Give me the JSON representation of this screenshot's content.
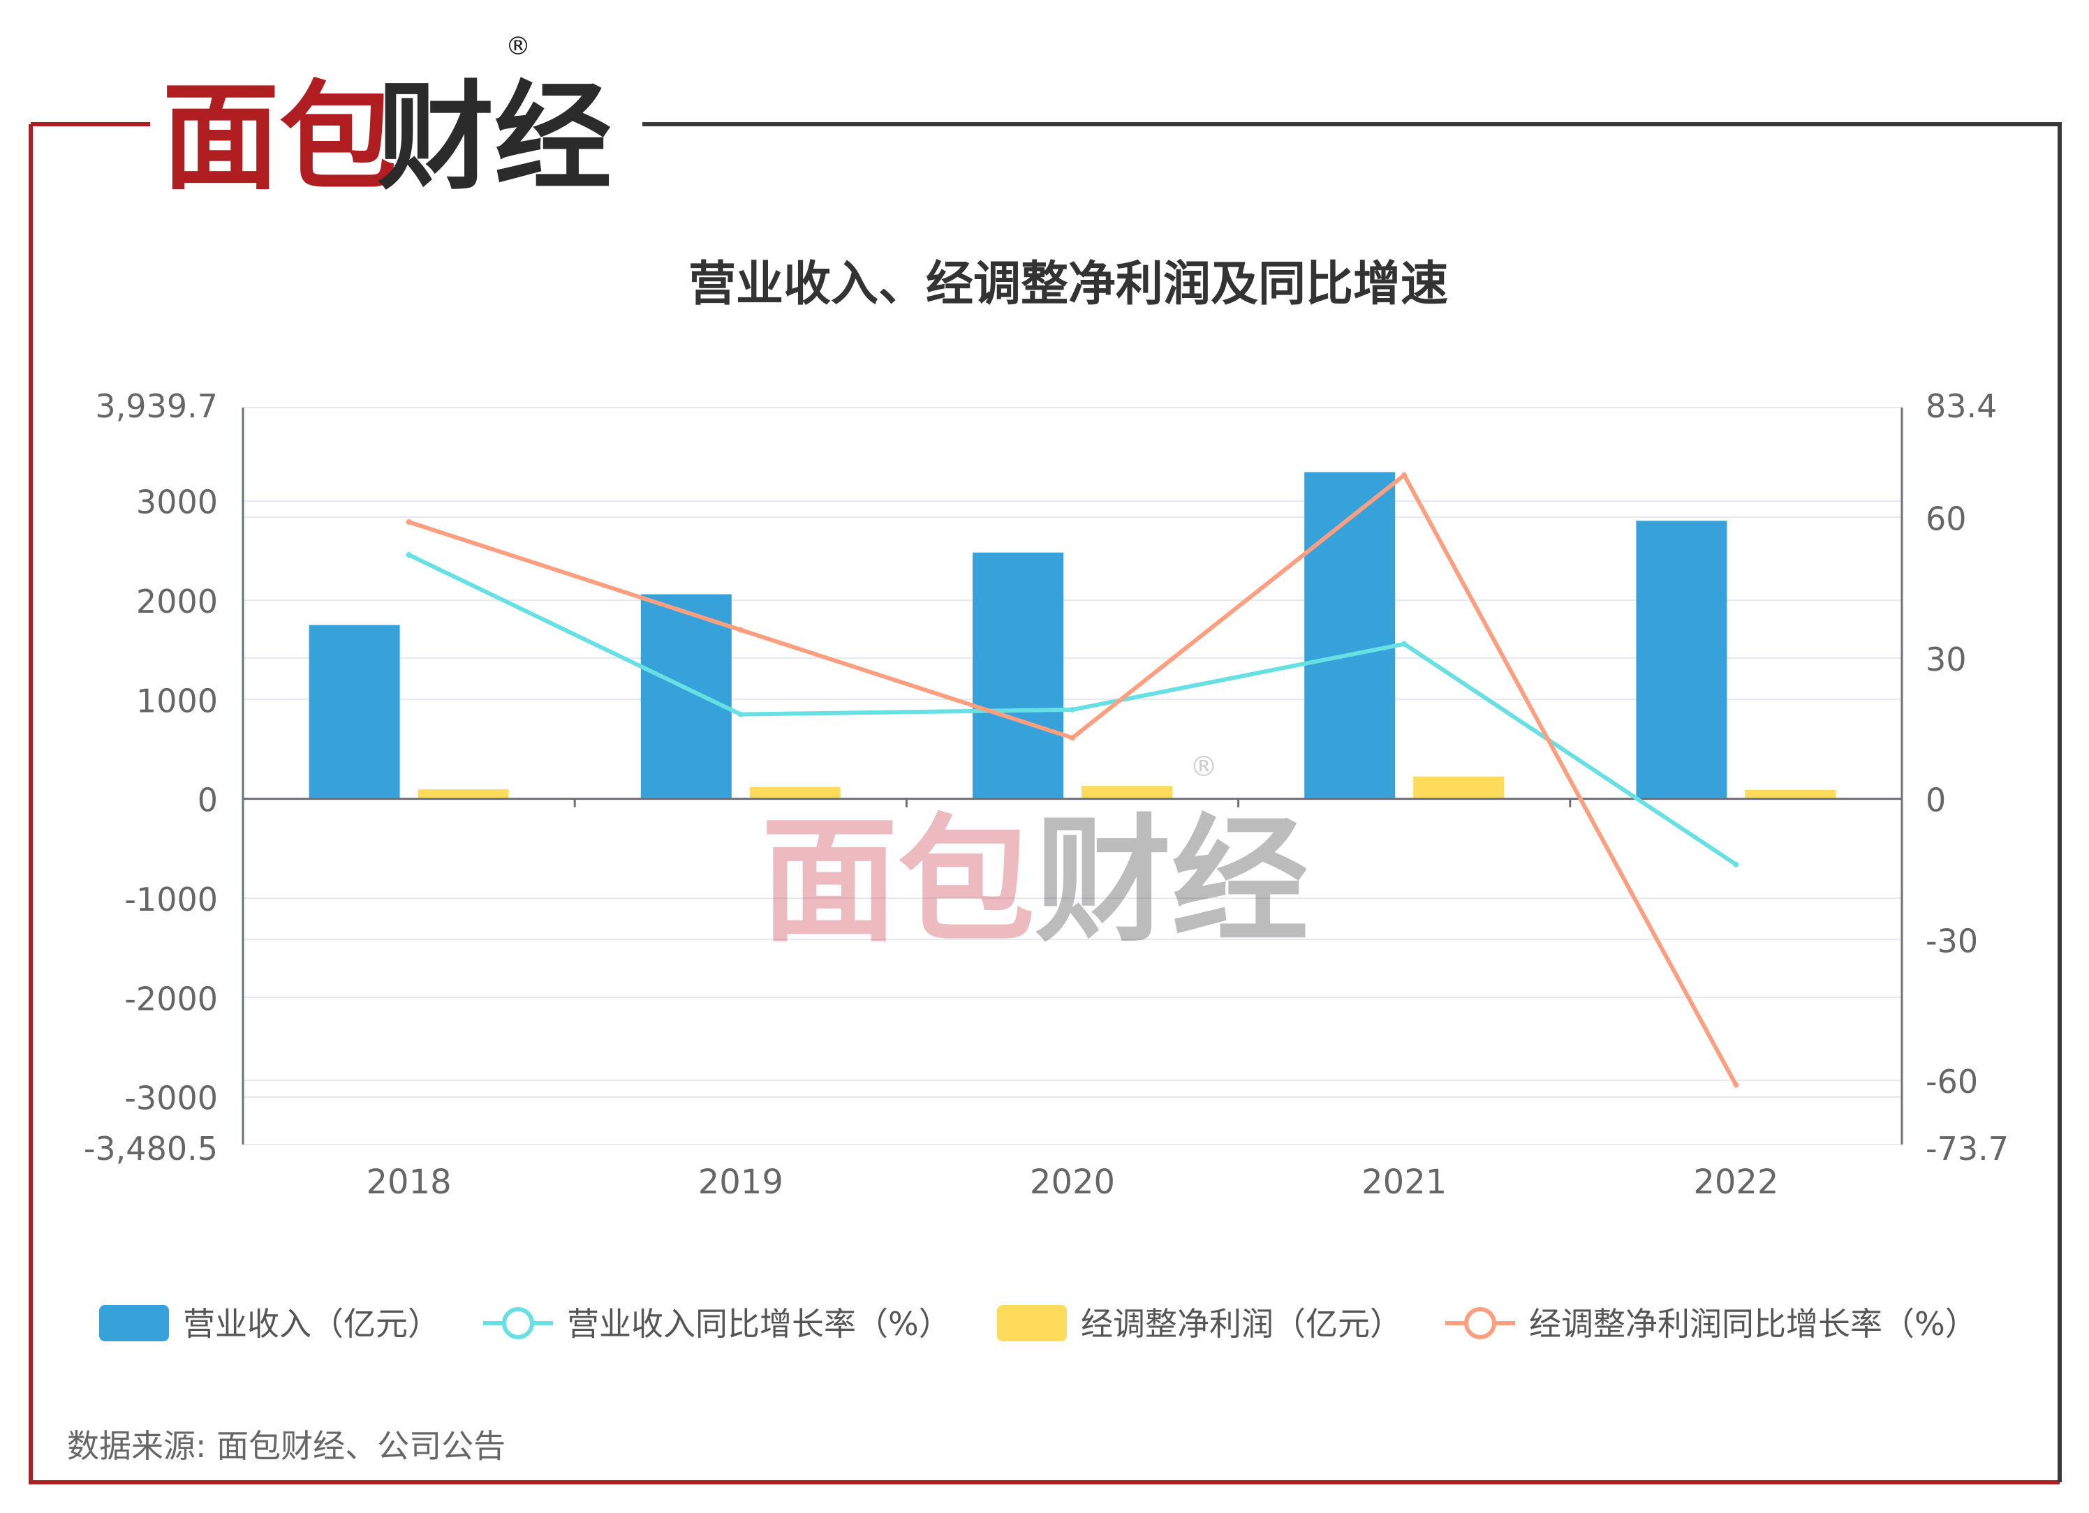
{
  "brand": {
    "name": "面包财经",
    "registered_mark": "®",
    "color_red": "#b01e22",
    "color_dark": "#2b2b2b"
  },
  "watermark": {
    "name": "面包财经",
    "registered_mark": "®"
  },
  "source_note": "数据来源: 面包财经、公司公告",
  "chart_data": {
    "type": "bar",
    "title": "营业收入、经调整净利润及同比增速",
    "categories": [
      "2018",
      "2019",
      "2020",
      "2021",
      "2022"
    ],
    "left_axis": {
      "min": -3480.5,
      "max": 3939.7,
      "ticks": [
        -3000,
        -2000,
        -1000,
        0,
        1000,
        2000,
        3000
      ],
      "tick_labels": [
        "-3000",
        "-2000",
        "-1000",
        "0",
        "1000",
        "2000",
        "3000"
      ],
      "min_label": "-3,480.5",
      "max_label": "3,939.7"
    },
    "right_axis": {
      "min": -73.7,
      "max": 83.4,
      "ticks": [
        -60,
        -30,
        0,
        30,
        60
      ],
      "tick_labels": [
        "-60",
        "-30",
        "0",
        "30",
        "60"
      ],
      "min_label": "-73.7",
      "max_label": "83.4"
    },
    "grid": true,
    "legend_position": "bottom",
    "series": [
      {
        "name": "营业收入（亿元）",
        "type": "bar",
        "axis": "left",
        "color": "#37a2da",
        "values": [
          1750,
          2060,
          2480,
          3290,
          2800
        ]
      },
      {
        "name": "营业收入同比增长率（%）",
        "type": "line",
        "axis": "right",
        "color": "#67e0e3",
        "values": [
          52,
          18,
          19,
          33,
          -14
        ]
      },
      {
        "name": "经调整净利润（亿元）",
        "type": "bar",
        "axis": "left",
        "color": "#ffdb5c",
        "values": [
          95,
          120,
          130,
          225,
          90
        ]
      },
      {
        "name": "经调整净利润同比增长率（%）",
        "type": "line",
        "axis": "right",
        "color": "#ff9f7f",
        "values": [
          59,
          36,
          13,
          69,
          -61
        ]
      }
    ]
  }
}
